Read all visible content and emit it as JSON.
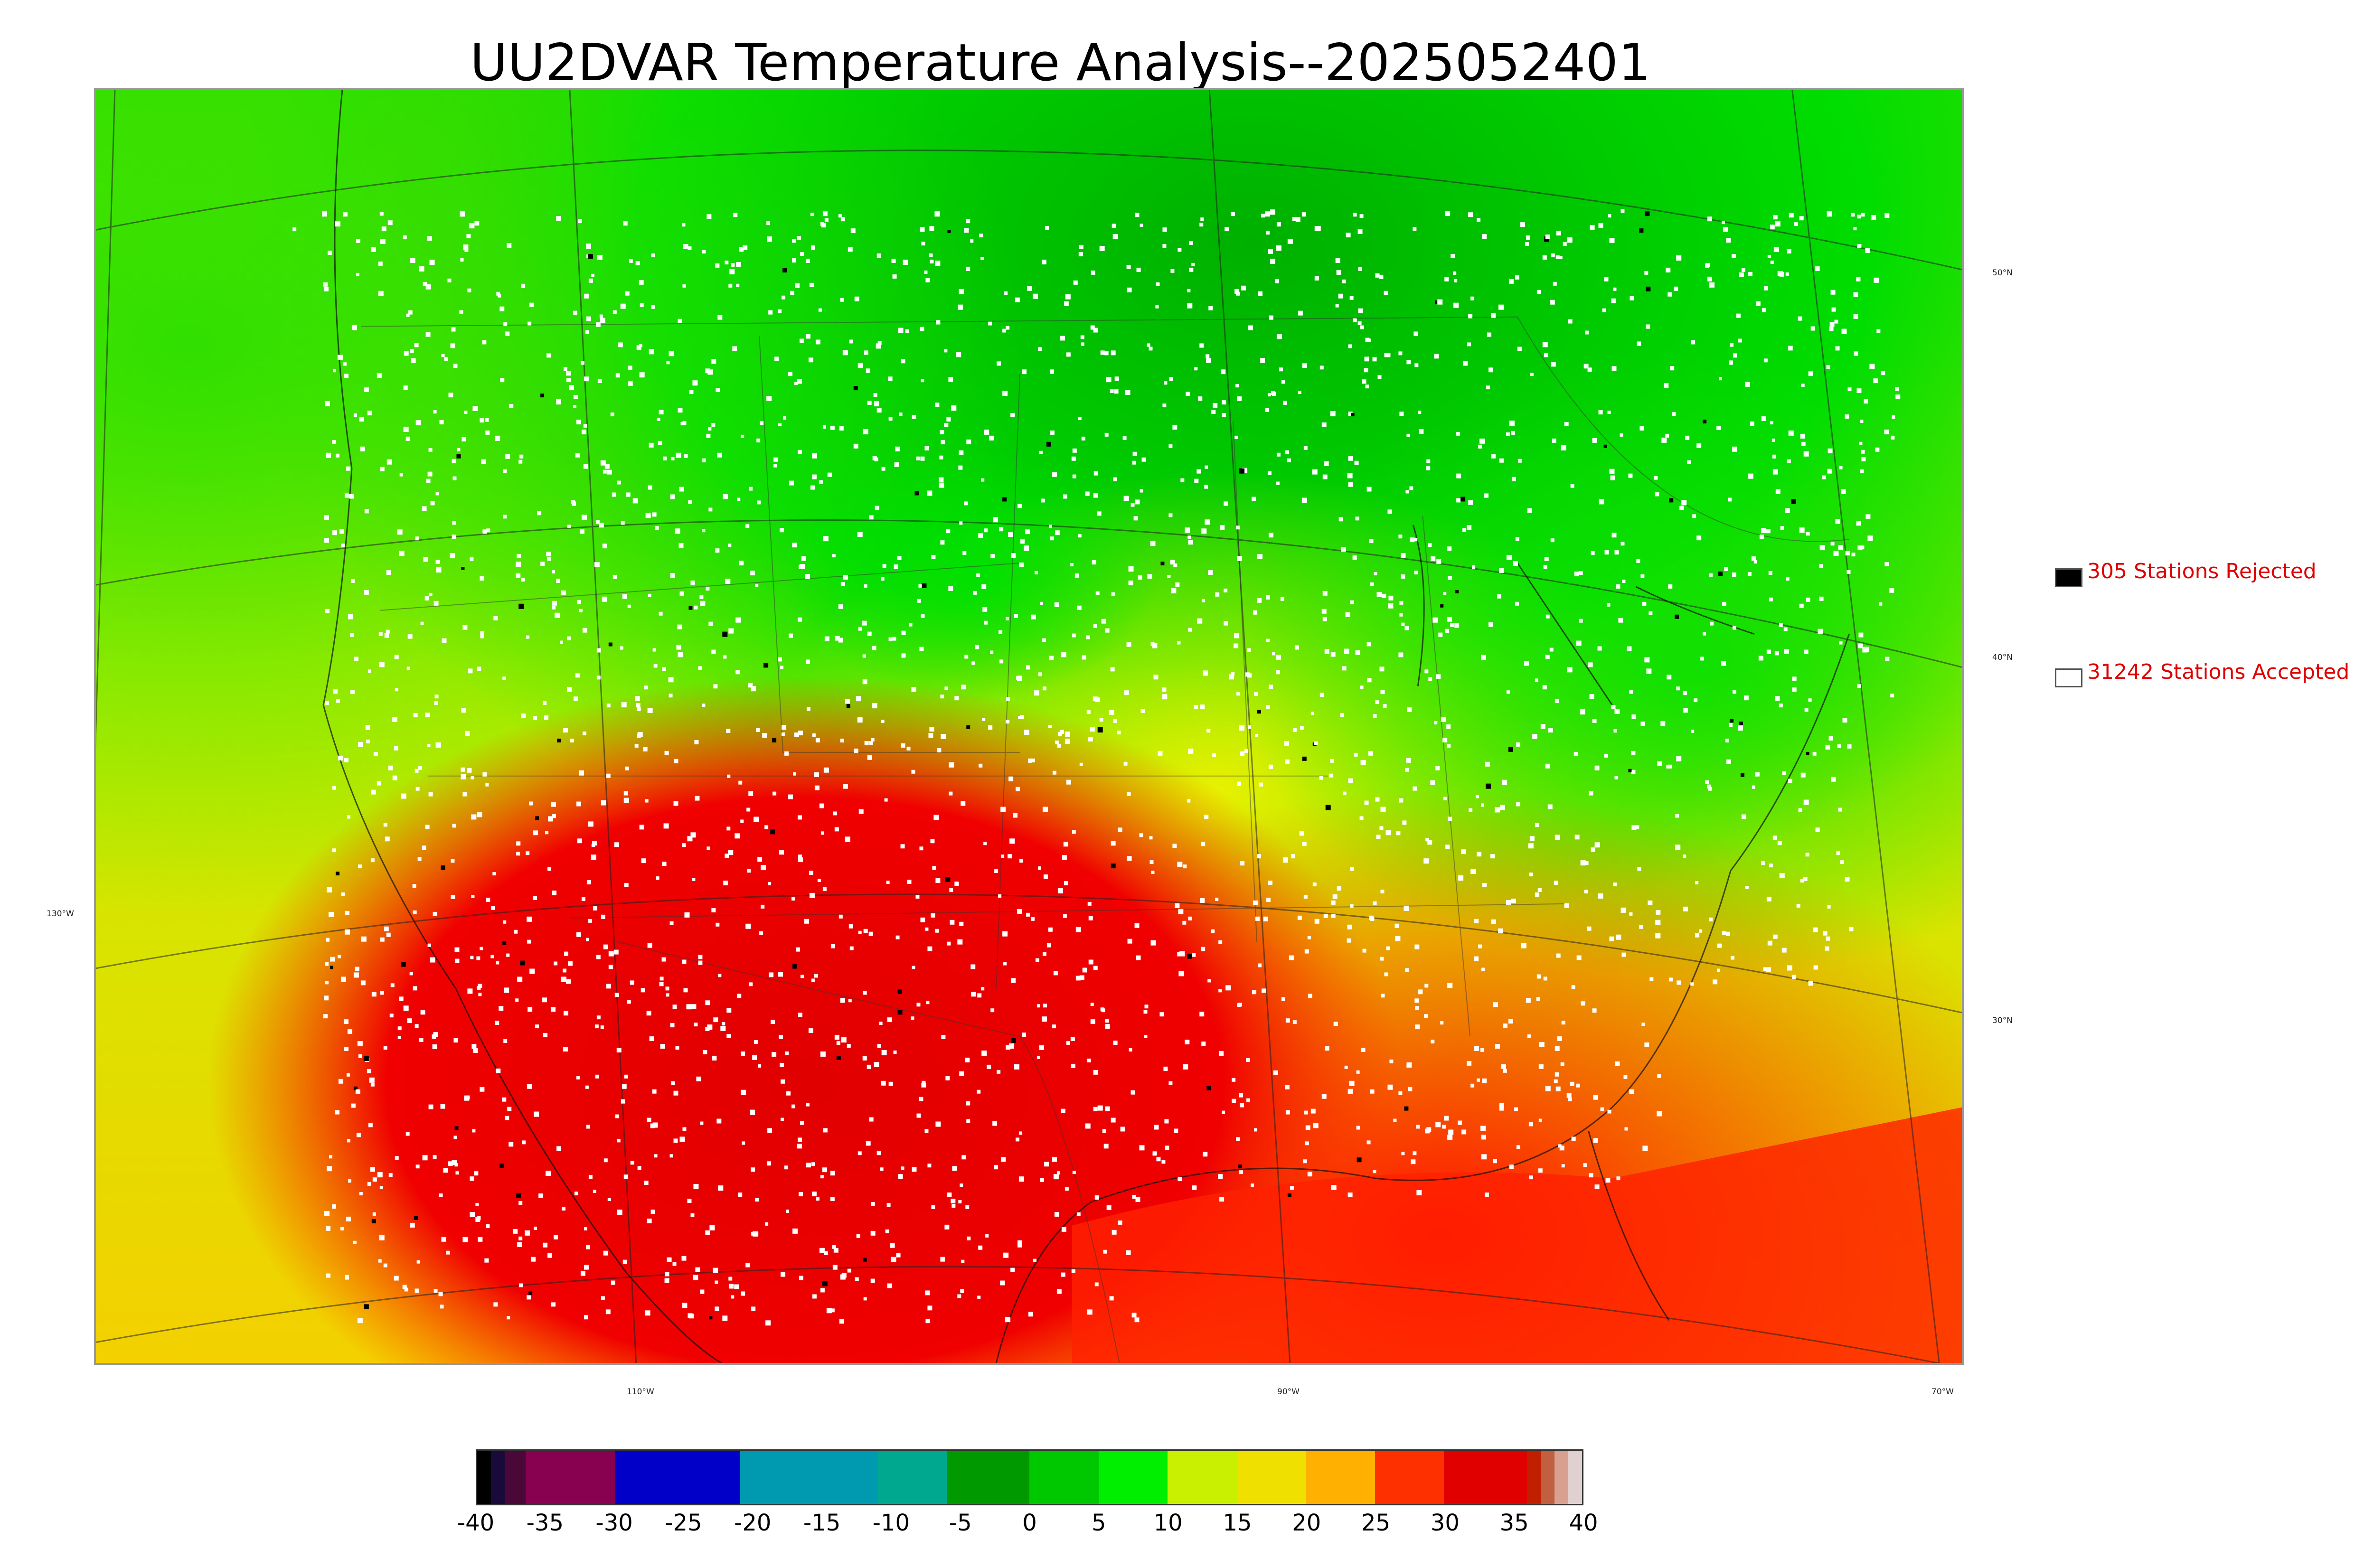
{
  "title": "UU2DVAR Temperature Analysis--2025052401",
  "lat_labels": [
    "50°N",
    "40°N",
    "30°N"
  ],
  "lon_labels": [
    "130°W",
    "110°W",
    "90°W",
    "70°W"
  ],
  "legend": [
    {
      "label": "305 Stations Rejected",
      "swatch": "#000000"
    },
    {
      "label": "31242 Stations Accepted",
      "swatch": "#ffffff"
    }
  ],
  "colorbar": {
    "ticks": [
      "-40",
      "-35",
      "-30",
      "-25",
      "-20",
      "-15",
      "-10",
      "-5",
      "0",
      "5",
      "10",
      "15",
      "20",
      "25",
      "30",
      "35",
      "40"
    ],
    "range": [
      -40,
      40
    ],
    "segments": [
      {
        "from": -40,
        "to": -39,
        "color": "#000000"
      },
      {
        "from": -39,
        "to": -38,
        "color": "#1a0a3a"
      },
      {
        "from": -38,
        "to": -36.5,
        "color": "#4a0838"
      },
      {
        "from": -36.5,
        "to": -30,
        "color": "#880050"
      },
      {
        "from": -30,
        "to": -21,
        "color": "#0000c8"
      },
      {
        "from": -21,
        "to": -11,
        "color": "#009ab0"
      },
      {
        "from": -11,
        "to": -6,
        "color": "#00a890"
      },
      {
        "from": -6,
        "to": 0,
        "color": "#009a00"
      },
      {
        "from": 0,
        "to": 5,
        "color": "#00c800"
      },
      {
        "from": 5,
        "to": 10,
        "color": "#00ee00"
      },
      {
        "from": 10,
        "to": 15,
        "color": "#c8f000"
      },
      {
        "from": 15,
        "to": 20,
        "color": "#f0e000"
      },
      {
        "from": 20,
        "to": 25,
        "color": "#ffb000"
      },
      {
        "from": 25,
        "to": 30,
        "color": "#ff3000"
      },
      {
        "from": 30,
        "to": 36,
        "color": "#e00000"
      },
      {
        "from": 36,
        "to": 37,
        "color": "#c02000"
      },
      {
        "from": 37,
        "to": 38,
        "color": "#c06040"
      },
      {
        "from": 38,
        "to": 39,
        "color": "#d8a090"
      },
      {
        "from": 39,
        "to": 40,
        "color": "#e0d0d0"
      }
    ]
  },
  "colors": {
    "rejected": "#000000",
    "accepted": "#ffffff",
    "legend_text": "#e00000"
  }
}
